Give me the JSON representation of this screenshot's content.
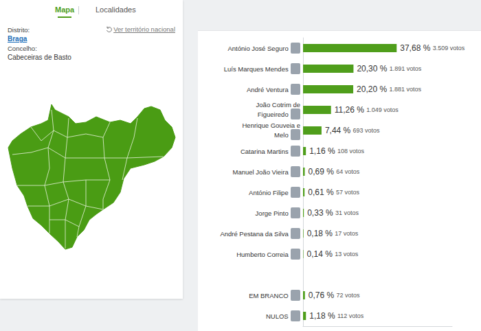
{
  "tabs": {
    "active": "Mapa",
    "other": "Localidades"
  },
  "location": {
    "district_label": "Distrito:",
    "district": "Braga",
    "municipality_label": "Concelho:",
    "municipality": "Cabeceiras de Basto",
    "national_link": "Ver território nacional"
  },
  "chart_data": {
    "type": "bar",
    "orientation": "horizontal",
    "categories": [
      "António José Seguro",
      "Luís Marques Mendes",
      "André Ventura",
      "João Cotrim de Figueiredo",
      "Henrique Gouveia e Melo",
      "Catarina Martins",
      "Manuel João Vieira",
      "António Filipe",
      "Jorge Pinto",
      "André Pestana da Silva",
      "Humberto Correia",
      null,
      "EM BRANCO",
      "NULOS"
    ],
    "values": [
      37.68,
      20.3,
      20.2,
      11.26,
      7.44,
      1.16,
      0.69,
      0.61,
      0.33,
      0.18,
      0.14,
      null,
      0.76,
      1.18
    ],
    "value_labels": [
      "37,68 %",
      "20,30 %",
      "20,20 %",
      "11,26 %",
      "7,44 %",
      "1,16 %",
      "0,69 %",
      "0,61 %",
      "0,33 %",
      "0,18 %",
      "0,14 %",
      null,
      "0,76 %",
      "1,18 %"
    ],
    "vote_labels": [
      "3.509 votos",
      "1.891 votos",
      "1.881 votos",
      "1.049 votos",
      "693 votos",
      "108 votos",
      "64 votos",
      "57 votos",
      "31 votos",
      "17 votos",
      "13 votos",
      null,
      "72 votos",
      "112 votos"
    ],
    "color": "#4f9e1b",
    "xlim": [
      0,
      60
    ],
    "data_labels": true,
    "tick_labels": "y",
    "grid": false
  }
}
